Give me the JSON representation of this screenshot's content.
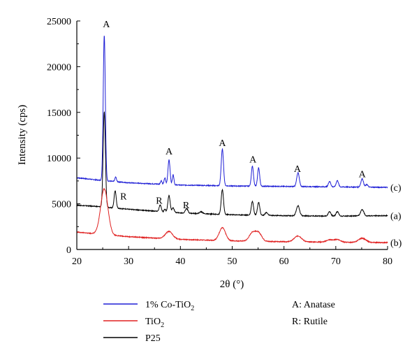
{
  "chart_data": {
    "type": "line",
    "xlabel": "2θ (°)",
    "ylabel": "Intensity (cps)",
    "xlim": [
      20,
      80
    ],
    "ylim": [
      0,
      25000
    ],
    "x_ticks": [
      "20",
      "30",
      "40",
      "50",
      "60",
      "70",
      "80"
    ],
    "y_ticks": [
      "0",
      "5000",
      "10000",
      "15000",
      "20000",
      "25000"
    ],
    "grid": false,
    "series": [
      {
        "name": "1% Co-TiO2",
        "tag": "(c)",
        "color": "#1f1fd6",
        "baseline": [
          [
            20,
            7850
          ],
          [
            24,
            7600
          ],
          [
            30,
            7300
          ],
          [
            40,
            7050
          ],
          [
            50,
            6950
          ],
          [
            60,
            6900
          ],
          [
            70,
            6850
          ],
          [
            80,
            6800
          ]
        ],
        "peaks": [
          [
            25.3,
            15900,
            0.2
          ],
          [
            27.5,
            500,
            0.15
          ],
          [
            36.3,
            400,
            0.15
          ],
          [
            37.0,
            700,
            0.15
          ],
          [
            37.8,
            2700,
            0.2
          ],
          [
            38.6,
            1100,
            0.15
          ],
          [
            48.1,
            4000,
            0.22
          ],
          [
            53.9,
            2200,
            0.2
          ],
          [
            55.1,
            2000,
            0.2
          ],
          [
            62.7,
            1500,
            0.25
          ],
          [
            68.8,
            600,
            0.22
          ],
          [
            70.3,
            700,
            0.22
          ],
          [
            75.1,
            900,
            0.25
          ],
          [
            76.0,
            300,
            0.2
          ]
        ]
      },
      {
        "name": "P25",
        "tag": "(a)",
        "color": "#000000",
        "baseline": [
          [
            20,
            4850
          ],
          [
            24,
            4700
          ],
          [
            30,
            4400
          ],
          [
            40,
            4000
          ],
          [
            50,
            3800
          ],
          [
            60,
            3700
          ],
          [
            70,
            3650
          ],
          [
            80,
            3700
          ]
        ],
        "peaks": [
          [
            25.3,
            10400,
            0.22
          ],
          [
            27.4,
            1900,
            0.2
          ],
          [
            36.1,
            700,
            0.2
          ],
          [
            37.0,
            300,
            0.15
          ],
          [
            37.8,
            1800,
            0.22
          ],
          [
            38.6,
            500,
            0.2
          ],
          [
            41.2,
            500,
            0.25
          ],
          [
            44.0,
            200,
            0.3
          ],
          [
            48.1,
            2700,
            0.22
          ],
          [
            53.9,
            1500,
            0.22
          ],
          [
            55.1,
            1400,
            0.22
          ],
          [
            56.6,
            300,
            0.25
          ],
          [
            62.7,
            1100,
            0.3
          ],
          [
            68.8,
            500,
            0.25
          ],
          [
            70.3,
            500,
            0.25
          ],
          [
            75.1,
            700,
            0.3
          ]
        ]
      },
      {
        "name": "TiO2",
        "tag": "(b)",
        "color": "#e02020",
        "baseline": [
          [
            20,
            1900
          ],
          [
            24,
            1700
          ],
          [
            30,
            1400
          ],
          [
            40,
            1100
          ],
          [
            50,
            950
          ],
          [
            60,
            850
          ],
          [
            70,
            800
          ],
          [
            80,
            750
          ]
        ],
        "peaks": [
          [
            25.3,
            5000,
            0.7
          ],
          [
            37.8,
            800,
            0.7
          ],
          [
            48.1,
            1400,
            0.6
          ],
          [
            53.9,
            900,
            0.6
          ],
          [
            55.1,
            900,
            0.6
          ],
          [
            62.7,
            650,
            0.7
          ],
          [
            68.8,
            250,
            0.6
          ],
          [
            70.3,
            300,
            0.6
          ],
          [
            75.1,
            450,
            0.7
          ]
        ]
      }
    ],
    "annotations": [
      {
        "text": "A",
        "x": 25.7,
        "y": 24300
      },
      {
        "text": "A",
        "x": 37.8,
        "y": 10400
      },
      {
        "text": "A",
        "x": 48.1,
        "y": 11300
      },
      {
        "text": "A",
        "x": 54.0,
        "y": 9500
      },
      {
        "text": "A",
        "x": 62.6,
        "y": 8500
      },
      {
        "text": "A",
        "x": 75.1,
        "y": 7900
      },
      {
        "text": "R",
        "x": 29.0,
        "y": 5450
      },
      {
        "text": "R",
        "x": 35.9,
        "y": 5000
      },
      {
        "text": "R",
        "x": 41.1,
        "y": 4500
      }
    ],
    "legend": {
      "position": "bottom-left",
      "entries": [
        {
          "main": "1% Co-TiO",
          "sub": "2",
          "color": "#1f1fd6"
        },
        {
          "main": "TiO",
          "sub": "2",
          "color": "#e02020"
        },
        {
          "main": "P25",
          "sub": "",
          "color": "#000000"
        }
      ]
    },
    "key": [
      "A: Anatase",
      "R: Rutile"
    ]
  }
}
